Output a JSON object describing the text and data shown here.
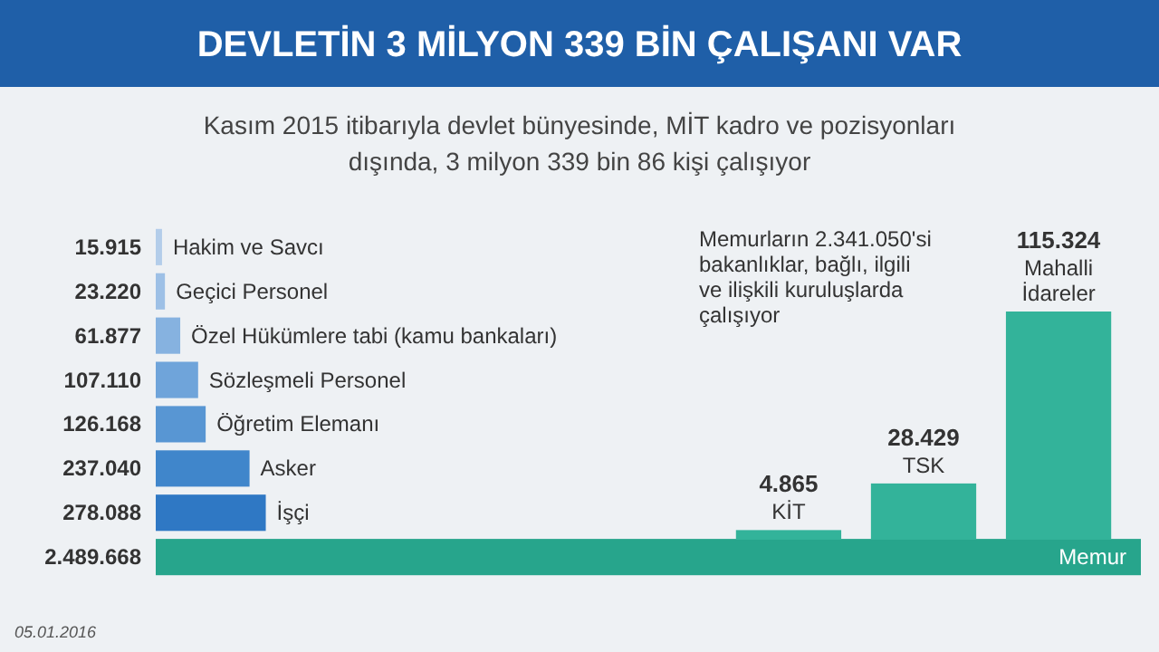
{
  "chart_data": [
    {
      "type": "bar",
      "orientation": "horizontal",
      "title": "DEVLETİN 3 MİLYON 339 BİN ÇALIŞANI VAR",
      "subtitle": "Kasım 2015 itibarıyla devlet bünyesinde, MİT kadro ve pozisyonları dışında, 3 milyon 339 bin 86 kişi çalışıyor",
      "categories": [
        "Hakim ve Savcı",
        "Geçici Personel",
        "Özel Hükümlere tabi (kamu bankaları)",
        "Sözleşmeli Personel",
        "Öğretim Elemanı",
        "Asker",
        "İşçi",
        "Memur"
      ],
      "values": [
        15915,
        23220,
        61877,
        107110,
        126168,
        237040,
        278088,
        2489668
      ],
      "value_labels": [
        "15.915",
        "23.220",
        "61.877",
        "107.110",
        "126.168",
        "237.040",
        "278.088",
        "2.489.668"
      ],
      "colors": [
        "#b3cdea",
        "#9dc0e6",
        "#86b2e0",
        "#6fa4da",
        "#5896d3",
        "#4086cb",
        "#2f78c4",
        "#27a58c"
      ],
      "annotations": [
        "05.01.2016"
      ]
    },
    {
      "type": "bar",
      "categories": [
        "KİT",
        "TSK",
        "Mahalli İdareler"
      ],
      "values": [
        4865,
        28429,
        115324
      ],
      "value_labels": [
        "4.865",
        "28.429",
        "115.324"
      ],
      "color": "#33b39a",
      "annotations": [
        "Memurların 2.341.050'si bakanlıklar, bağlı, ilgili ve ilişkili kuruluşlarda çalışıyor"
      ]
    }
  ]
}
